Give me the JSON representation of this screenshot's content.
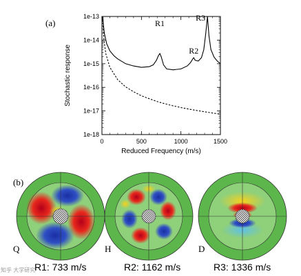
{
  "panel_a_label": "(a)",
  "panel_b_label": "(b)",
  "watermark": "知乎 大学研究",
  "chart_data": {
    "type": "line",
    "xlabel": "Reduced Frequency (m/s)",
    "ylabel": "Stochastic response",
    "xlim": [
      0,
      1500
    ],
    "ylim_log10": [
      -18,
      -13
    ],
    "yscale": "log",
    "xticks": [
      "0",
      "500",
      "1000",
      "1500"
    ],
    "yticks": [
      "1e-18",
      "1e-17",
      "1e-16",
      "1e-15",
      "1e-14",
      "1e-13"
    ],
    "annotations": [
      {
        "text": "R1",
        "x": 733,
        "y": 2.6e-14
      },
      {
        "text": "R2",
        "x": 1162,
        "y": 1.8e-15
      },
      {
        "text": "R3",
        "x": 1336,
        "y": 1e-13
      }
    ],
    "series": [
      {
        "style": "solid",
        "x": [
          8,
          30,
          60,
          100,
          150,
          200,
          300,
          400,
          500,
          600,
          650,
          690,
          715,
          733,
          750,
          780,
          820,
          900,
          1000,
          1080,
          1120,
          1150,
          1162,
          1180,
          1220,
          1260,
          1290,
          1315,
          1336,
          1355,
          1380,
          1420,
          1460,
          1500
        ],
        "y": [
          1e-13,
          2e-14,
          7e-15,
          3.5e-15,
          2.2e-15,
          1.6e-15,
          1e-15,
          8e-16,
          7e-16,
          7.5e-16,
          9e-16,
          1.4e-15,
          2.2e-15,
          2.7e-15,
          2e-15,
          9e-16,
          6e-16,
          5.5e-16,
          6e-16,
          8e-16,
          1.1e-15,
          1.6e-15,
          1.8e-15,
          1.4e-15,
          1.3e-15,
          1.8e-15,
          4e-15,
          2e-14,
          1e-13,
          1.5e-14,
          4e-15,
          1.9e-15,
          1.3e-15,
          1e-15
        ]
      },
      {
        "style": "dashed",
        "x": [
          8,
          25,
          50,
          100,
          200,
          300,
          400,
          500,
          600,
          700,
          800,
          900,
          1000,
          1100,
          1200,
          1300,
          1400,
          1500
        ],
        "y": [
          1e-13,
          1e-14,
          2.6e-15,
          7e-16,
          2.1e-16,
          1.05e-16,
          6.5e-17,
          4.4e-17,
          3.3e-17,
          2.5e-17,
          2e-17,
          1.65e-17,
          1.4e-17,
          1.2e-17,
          1.05e-17,
          9.2e-18,
          8.2e-18,
          7.3e-18
        ]
      }
    ]
  },
  "modes": [
    {
      "corner_label": "Q",
      "caption": "R1: 733 m/s"
    },
    {
      "corner_label": "H",
      "caption": "R2: 1162 m/s"
    },
    {
      "corner_label": "D",
      "caption": "R3: 1336 m/s"
    }
  ],
  "colors": {
    "outer_ring": "#5db64b",
    "face_bg": "#8fd07b",
    "warm": "#e2231a",
    "cool": "#2a3fb0",
    "hub": "#d8d8d8"
  }
}
